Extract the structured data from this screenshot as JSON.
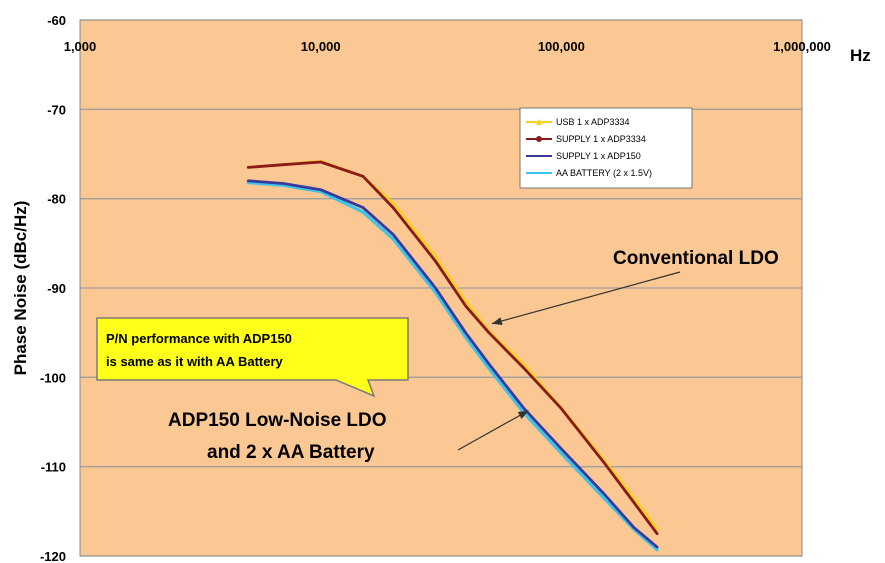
{
  "chart_data": {
    "type": "line",
    "title": "",
    "xlabel": "Hz",
    "ylabel": "Phase Noise (dBc/Hz)",
    "x_scale": "log",
    "xlim": [
      1000,
      1000000
    ],
    "ylim": [
      -120,
      -60
    ],
    "x_ticks": [
      1000,
      10000,
      100000,
      1000000
    ],
    "x_tick_labels": [
      "1,000",
      "10,000",
      "100,000",
      "1,000,000"
    ],
    "y_ticks": [
      -60,
      -70,
      -80,
      -90,
      -100,
      -110,
      -120
    ],
    "y_tick_labels": [
      "-60",
      "-70",
      "-80",
      "-90",
      "-100",
      "-110",
      "-120"
    ],
    "grid": "horizontal",
    "legend_position": "top-right",
    "colors": {
      "plot_background": "#fbc792",
      "gridline": "#a0a0a0"
    },
    "series": [
      {
        "name": "USB 1 x ADP3334",
        "color": "#f2d21d",
        "marker": "triangle",
        "x": [
          5000,
          7000,
          10000,
          15000,
          20000,
          30000,
          40000,
          50000,
          70000,
          100000,
          150000,
          200000,
          250000
        ],
        "y": [
          -76.5,
          -76.2,
          -75.8,
          -77.5,
          -80.5,
          -86.5,
          -91.5,
          -94.8,
          -98.6,
          -103.4,
          -109.2,
          -113.5,
          -117
        ]
      },
      {
        "name": "SUPPLY 1 x ADP3334",
        "color": "#8b1a1a",
        "marker": "circle",
        "x": [
          5000,
          7000,
          10000,
          15000,
          20000,
          30000,
          40000,
          50000,
          70000,
          100000,
          150000,
          200000,
          250000
        ],
        "y": [
          -76.5,
          -76.2,
          -75.9,
          -77.5,
          -81,
          -87,
          -92,
          -95,
          -99,
          -103.5,
          -109.5,
          -114,
          -117.5
        ]
      },
      {
        "name": "SUPPLY 1 x ADP150",
        "color": "#3a3a9a",
        "marker": "none",
        "x": [
          5000,
          7000,
          10000,
          15000,
          20000,
          30000,
          40000,
          50000,
          70000,
          100000,
          150000,
          200000,
          250000
        ],
        "y": [
          -78,
          -78.3,
          -79,
          -81,
          -84,
          -90,
          -95,
          -98.5,
          -103.5,
          -108,
          -113,
          -116.8,
          -119
        ]
      },
      {
        "name": "AA BATTERY (2 x 1.5V)",
        "color": "#3cc4ec",
        "marker": "none",
        "x": [
          5000,
          7000,
          10000,
          15000,
          20000,
          30000,
          40000,
          50000,
          70000,
          100000,
          150000,
          200000,
          250000
        ],
        "y": [
          -78.2,
          -78.5,
          -79.2,
          -81.5,
          -84.5,
          -90.5,
          -95.5,
          -99,
          -104,
          -108.5,
          -113.5,
          -117,
          -119.3
        ]
      }
    ],
    "annotations": [
      {
        "text": "Conventional LDO",
        "arrow_to": {
          "x": 50000,
          "y": -94
        }
      },
      {
        "text_lines": [
          "ADP150 Low-Noise LDO",
          "and 2 x AA Battery"
        ],
        "arrow_to": {
          "x": 73000,
          "y": -103.5
        }
      },
      {
        "text_lines": [
          "P/N performance with ADP150",
          "is same as it with AA Battery"
        ],
        "style": "callout",
        "color": "#ffff1a"
      }
    ]
  }
}
